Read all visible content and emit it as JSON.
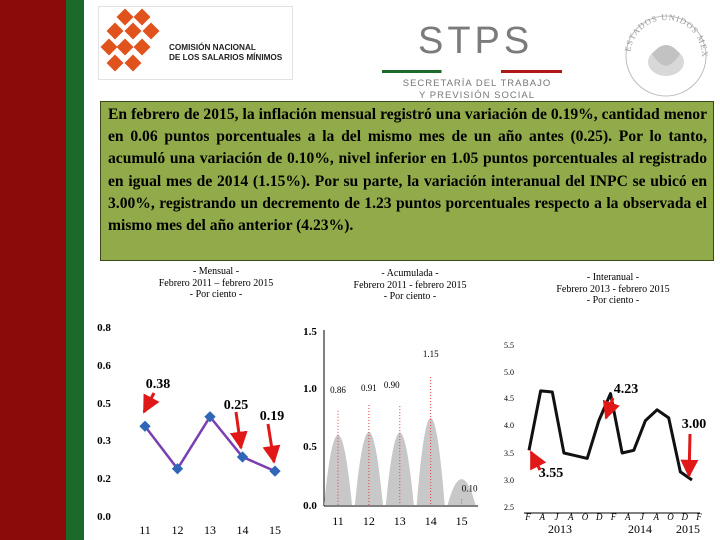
{
  "header": {
    "cnsm_line1": "COMISIÓN NACIONAL",
    "cnsm_line2": "DE LOS SALARIOS MÍNIMOS",
    "stps": "STPS",
    "stps_sub1": "SECRETARÍA DEL TRABAJO",
    "stps_sub2": "Y PREVISIÓN SOCIAL",
    "seal_text": "ESTADOS UNIDOS MEXICANOS"
  },
  "summary_text": "En febrero de 2015, la inflación mensual registró una variación de 0.19%, cantidad menor en 0.06 puntos porcentuales a la del mismo mes de un año antes (0.25). Por lo tanto, acumuló una variación de 0.10%, nivel inferior en 1.05 puntos porcentuales al registrado en igual mes de 2014 (1.15%). Por su parte, la variación interanual del INPC se ubicó en 3.00%, registrando un decremento de 1.23 puntos porcentuales respecto a la observada el mismo mes del año anterior (4.23%).",
  "colors": {
    "sidebar_red": "#8b0b0b",
    "sidebar_green": "#1c6a2a",
    "textbox_bg": "#92ab4a",
    "line_purple": "#7a3fb0",
    "marker_blue": "#2e67b8",
    "arrow_red": "#e01818",
    "peak_gray": "#c8c8c8",
    "peak_red": "#e04040"
  },
  "chart_data": [
    {
      "type": "line",
      "title_lines": [
        "- Mensual -",
        "Febrero 2011 – febrero 2015",
        "- Por ciento -"
      ],
      "categories": [
        "11",
        "12",
        "13",
        "14",
        "15"
      ],
      "values": [
        0.38,
        0.2,
        0.42,
        0.25,
        0.19
      ],
      "y_ticks": [
        "0.0",
        "0.2",
        "0.3",
        "0.5",
        "0.6",
        "0.8"
      ],
      "ylim": [
        0,
        0.8
      ],
      "annotations": [
        "0.38",
        "0.25",
        "0.19"
      ]
    },
    {
      "type": "area",
      "title_lines": [
        "- Acumulada -",
        "Febrero 2011 - febrero 2015",
        "- Por ciento -"
      ],
      "categories": [
        "11",
        "12",
        "13",
        "14",
        "15"
      ],
      "peaks": [
        0.86,
        0.91,
        0.9,
        1.15,
        0.1
      ],
      "y_ticks": [
        "0.0",
        "0.5",
        "1.0",
        "1.5"
      ],
      "ylim": [
        0,
        1.5
      ],
      "labels": [
        "0.86",
        "0.91",
        "0.90",
        "1.15",
        "0.10"
      ]
    },
    {
      "type": "line",
      "title_lines": [
        "- Interanual -",
        "Febrero 2013 - febrero 2015",
        "- Por ciento -"
      ],
      "month_labels": [
        "F",
        "A",
        "J",
        "A",
        "O",
        "D",
        "F",
        "A",
        "J",
        "A",
        "O",
        "D",
        "F"
      ],
      "year_labels": [
        "2013",
        "2014",
        "2015"
      ],
      "values": [
        3.55,
        4.65,
        4.63,
        3.5,
        3.45,
        3.4,
        4.1,
        4.6,
        3.5,
        3.55,
        4.1,
        4.3,
        4.15,
        3.15,
        3.0
      ],
      "y_ticks": [
        "2.5",
        "3.0",
        "3.5",
        "4.0",
        "4.5",
        "5.0",
        "5.5"
      ],
      "ylim": [
        2.5,
        5.5
      ],
      "annotations": [
        "4.23",
        "3.00",
        "3.55"
      ]
    }
  ]
}
